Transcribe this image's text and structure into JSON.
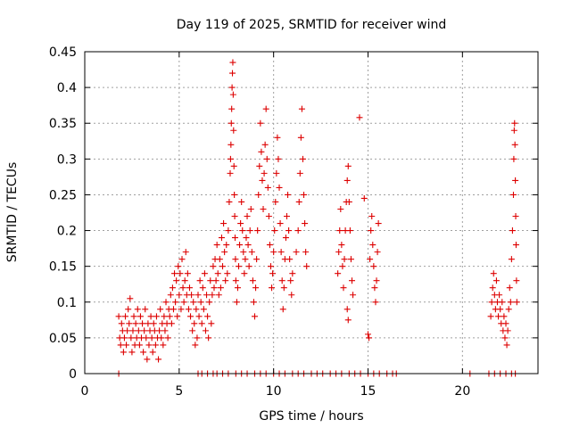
{
  "chart_data": {
    "type": "scatter",
    "title": "Day 119 of 2025, SRMTID for receiver wind",
    "xlabel": "GPS time / hours",
    "ylabel": "SRMTID / TECUs",
    "xlim": [
      0,
      24
    ],
    "ylim": [
      0,
      0.45
    ],
    "xticks": [
      0,
      5,
      10,
      15,
      20
    ],
    "yticks": [
      0,
      0.05,
      0.1,
      0.15,
      0.2,
      0.25,
      0.3,
      0.35,
      0.4,
      0.45
    ],
    "xtick_labels": [
      "0",
      "5",
      "10",
      "15",
      "20"
    ],
    "ytick_labels": [
      "0",
      "0.05",
      "0.1",
      "0.15",
      "0.2",
      "0.25",
      "0.3",
      "0.35",
      "0.4",
      "0.45"
    ],
    "grid": true,
    "marker": "+",
    "color": "#dd0000",
    "series": [
      {
        "name": "SRMTID",
        "points": [
          [
            1.8,
            0.08
          ],
          [
            1.85,
            0.05
          ],
          [
            1.9,
            0.04
          ],
          [
            1.95,
            0.07
          ],
          [
            2.0,
            0.06
          ],
          [
            2.05,
            0.03
          ],
          [
            2.1,
            0.05
          ],
          [
            2.15,
            0.08
          ],
          [
            2.2,
            0.04
          ],
          [
            2.25,
            0.06
          ],
          [
            2.3,
            0.09
          ],
          [
            2.35,
            0.07
          ],
          [
            2.4,
            0.105
          ],
          [
            2.45,
            0.05
          ],
          [
            2.5,
            0.03
          ],
          [
            2.55,
            0.06
          ],
          [
            2.6,
            0.08
          ],
          [
            2.65,
            0.04
          ],
          [
            2.7,
            0.07
          ],
          [
            2.75,
            0.05
          ],
          [
            2.8,
            0.09
          ],
          [
            2.85,
            0.06
          ],
          [
            2.9,
            0.04
          ],
          [
            2.95,
            0.08
          ],
          [
            3.0,
            0.05
          ],
          [
            3.05,
            0.07
          ],
          [
            3.1,
            0.03
          ],
          [
            3.15,
            0.06
          ],
          [
            3.2,
            0.09
          ],
          [
            3.25,
            0.05
          ],
          [
            3.3,
            0.02
          ],
          [
            3.35,
            0.07
          ],
          [
            3.4,
            0.04
          ],
          [
            3.45,
            0.06
          ],
          [
            3.5,
            0.08
          ],
          [
            3.55,
            0.05
          ],
          [
            3.6,
            0.03
          ],
          [
            3.65,
            0.07
          ],
          [
            3.7,
            0.06
          ],
          [
            3.75,
            0.04
          ],
          [
            3.8,
            0.08
          ],
          [
            3.85,
            0.05
          ],
          [
            3.9,
            0.02
          ],
          [
            3.95,
            0.06
          ],
          [
            4.0,
            0.09
          ],
          [
            4.05,
            0.05
          ],
          [
            4.1,
            0.07
          ],
          [
            4.15,
            0.04
          ],
          [
            4.2,
            0.08
          ],
          [
            4.25,
            0.06
          ],
          [
            4.3,
            0.1
          ],
          [
            4.35,
            0.07
          ],
          [
            4.4,
            0.05
          ],
          [
            4.45,
            0.09
          ],
          [
            4.5,
            0.08
          ],
          [
            4.55,
            0.11
          ],
          [
            4.6,
            0.07
          ],
          [
            4.65,
            0.12
          ],
          [
            4.7,
            0.09
          ],
          [
            4.75,
            0.14
          ],
          [
            4.8,
            0.1
          ],
          [
            4.85,
            0.13
          ],
          [
            4.9,
            0.08
          ],
          [
            4.95,
            0.15
          ],
          [
            5.0,
            0.11
          ],
          [
            5.05,
            0.14
          ],
          [
            5.1,
            0.09
          ],
          [
            5.15,
            0.16
          ],
          [
            5.2,
            0.12
          ],
          [
            5.25,
            0.1
          ],
          [
            5.3,
            0.13
          ],
          [
            5.35,
            0.17
          ],
          [
            5.4,
            0.11
          ],
          [
            5.45,
            0.14
          ],
          [
            5.5,
            0.09
          ],
          [
            5.55,
            0.12
          ],
          [
            5.6,
            0.08
          ],
          [
            5.65,
            0.11
          ],
          [
            5.7,
            0.06
          ],
          [
            5.75,
            0.1
          ],
          [
            5.8,
            0.07
          ],
          [
            5.85,
            0.04
          ],
          [
            5.9,
            0.09
          ],
          [
            5.95,
            0.05
          ],
          [
            6.0,
            0.11
          ],
          [
            6.05,
            0.08
          ],
          [
            6.1,
            0.13
          ],
          [
            6.15,
            0.1
          ],
          [
            6.2,
            0.07
          ],
          [
            6.25,
            0.12
          ],
          [
            6.3,
            0.09
          ],
          [
            6.35,
            0.14
          ],
          [
            6.4,
            0.06
          ],
          [
            6.45,
            0.11
          ],
          [
            6.5,
            0.08
          ],
          [
            6.55,
            0.05
          ],
          [
            6.6,
            0.1
          ],
          [
            6.65,
            0.13
          ],
          [
            6.7,
            0.07
          ],
          [
            6.75,
            0.11
          ],
          [
            6.8,
            0.15
          ],
          [
            6.85,
            0.12
          ],
          [
            6.9,
            0.16
          ],
          [
            6.95,
            0.13
          ],
          [
            7.0,
            0.18
          ],
          [
            7.05,
            0.14
          ],
          [
            7.1,
            0.11
          ],
          [
            7.15,
            0.16
          ],
          [
            7.2,
            0.12
          ],
          [
            7.25,
            0.19
          ],
          [
            7.3,
            0.15
          ],
          [
            7.35,
            0.21
          ],
          [
            7.4,
            0.17
          ],
          [
            7.45,
            0.13
          ],
          [
            7.5,
            0.18
          ],
          [
            7.55,
            0.14
          ],
          [
            7.6,
            0.2
          ],
          [
            7.65,
            0.24
          ],
          [
            7.7,
            0.28
          ],
          [
            7.72,
            0.3
          ],
          [
            7.74,
            0.32
          ],
          [
            7.76,
            0.35
          ],
          [
            7.78,
            0.37
          ],
          [
            7.8,
            0.4
          ],
          [
            7.82,
            0.42
          ],
          [
            7.84,
            0.435
          ],
          [
            7.86,
            0.39
          ],
          [
            7.88,
            0.34
          ],
          [
            7.9,
            0.29
          ],
          [
            7.92,
            0.25
          ],
          [
            7.94,
            0.22
          ],
          [
            7.96,
            0.19
          ],
          [
            7.98,
            0.16
          ],
          [
            8.0,
            0.13
          ],
          [
            8.05,
            0.1
          ],
          [
            8.1,
            0.12
          ],
          [
            8.15,
            0.15
          ],
          [
            8.2,
            0.18
          ],
          [
            8.25,
            0.21
          ],
          [
            8.3,
            0.24
          ],
          [
            8.35,
            0.2
          ],
          [
            8.4,
            0.17
          ],
          [
            8.45,
            0.14
          ],
          [
            8.5,
            0.16
          ],
          [
            8.55,
            0.19
          ],
          [
            8.6,
            0.22
          ],
          [
            8.65,
            0.18
          ],
          [
            8.7,
            0.15
          ],
          [
            8.75,
            0.2
          ],
          [
            8.8,
            0.23
          ],
          [
            8.85,
            0.17
          ],
          [
            8.9,
            0.13
          ],
          [
            8.95,
            0.1
          ],
          [
            9.0,
            0.08
          ],
          [
            9.05,
            0.12
          ],
          [
            9.1,
            0.16
          ],
          [
            9.15,
            0.2
          ],
          [
            9.2,
            0.25
          ],
          [
            9.25,
            0.29
          ],
          [
            9.3,
            0.35
          ],
          [
            9.35,
            0.31
          ],
          [
            9.4,
            0.27
          ],
          [
            9.45,
            0.23
          ],
          [
            9.5,
            0.28
          ],
          [
            9.55,
            0.32
          ],
          [
            9.6,
            0.37
          ],
          [
            9.65,
            0.3
          ],
          [
            9.7,
            0.26
          ],
          [
            9.75,
            0.22
          ],
          [
            9.8,
            0.18
          ],
          [
            9.85,
            0.15
          ],
          [
            9.9,
            0.12
          ],
          [
            9.95,
            0.14
          ],
          [
            10.0,
            0.17
          ],
          [
            10.05,
            0.2
          ],
          [
            10.1,
            0.24
          ],
          [
            10.15,
            0.28
          ],
          [
            10.2,
            0.33
          ],
          [
            10.25,
            0.3
          ],
          [
            10.3,
            0.26
          ],
          [
            10.35,
            0.21
          ],
          [
            10.4,
            0.17
          ],
          [
            10.45,
            0.13
          ],
          [
            10.5,
            0.09
          ],
          [
            10.55,
            0.12
          ],
          [
            10.6,
            0.16
          ],
          [
            10.65,
            0.19
          ],
          [
            10.7,
            0.22
          ],
          [
            10.75,
            0.25
          ],
          [
            10.8,
            0.2
          ],
          [
            10.85,
            0.16
          ],
          [
            10.9,
            0.13
          ],
          [
            10.95,
            0.11
          ],
          [
            11.0,
            0.14
          ],
          [
            11.2,
            0.17
          ],
          [
            11.3,
            0.2
          ],
          [
            11.35,
            0.24
          ],
          [
            11.4,
            0.28
          ],
          [
            11.45,
            0.33
          ],
          [
            11.5,
            0.37
          ],
          [
            11.55,
            0.3
          ],
          [
            11.6,
            0.25
          ],
          [
            11.65,
            0.21
          ],
          [
            11.7,
            0.17
          ],
          [
            11.75,
            0.15
          ],
          [
            13.4,
            0.14
          ],
          [
            13.45,
            0.17
          ],
          [
            13.5,
            0.2
          ],
          [
            13.55,
            0.23
          ],
          [
            13.6,
            0.18
          ],
          [
            13.65,
            0.15
          ],
          [
            13.7,
            0.12
          ],
          [
            13.75,
            0.16
          ],
          [
            13.8,
            0.2
          ],
          [
            13.85,
            0.24
          ],
          [
            13.9,
            0.27
          ],
          [
            13.95,
            0.29
          ],
          [
            14.0,
            0.24
          ],
          [
            14.05,
            0.2
          ],
          [
            14.1,
            0.16
          ],
          [
            14.15,
            0.13
          ],
          [
            14.2,
            0.11
          ],
          [
            13.9,
            0.09
          ],
          [
            13.95,
            0.075
          ],
          [
            14.55,
            0.358
          ],
          [
            14.8,
            0.245
          ],
          [
            15.1,
            0.16
          ],
          [
            15.15,
            0.2
          ],
          [
            15.2,
            0.22
          ],
          [
            15.25,
            0.18
          ],
          [
            15.3,
            0.15
          ],
          [
            15.35,
            0.12
          ],
          [
            15.4,
            0.1
          ],
          [
            15.45,
            0.13
          ],
          [
            15.5,
            0.17
          ],
          [
            15.55,
            0.21
          ],
          [
            15.0,
            0.055
          ],
          [
            15.05,
            0.05
          ],
          [
            21.5,
            0.08
          ],
          [
            21.55,
            0.1
          ],
          [
            21.6,
            0.12
          ],
          [
            21.65,
            0.14
          ],
          [
            21.7,
            0.11
          ],
          [
            21.75,
            0.09
          ],
          [
            21.8,
            0.13
          ],
          [
            21.85,
            0.1
          ],
          [
            21.9,
            0.08
          ],
          [
            21.95,
            0.11
          ],
          [
            22.0,
            0.09
          ],
          [
            22.05,
            0.07
          ],
          [
            22.1,
            0.1
          ],
          [
            22.15,
            0.06
          ],
          [
            22.2,
            0.08
          ],
          [
            22.25,
            0.05
          ],
          [
            22.3,
            0.07
          ],
          [
            22.35,
            0.04
          ],
          [
            22.4,
            0.06
          ],
          [
            22.45,
            0.09
          ],
          [
            22.5,
            0.12
          ],
          [
            22.55,
            0.1
          ],
          [
            22.6,
            0.16
          ],
          [
            22.65,
            0.2
          ],
          [
            22.7,
            0.25
          ],
          [
            22.72,
            0.3
          ],
          [
            22.74,
            0.34
          ],
          [
            22.76,
            0.35
          ],
          [
            22.78,
            0.32
          ],
          [
            22.8,
            0.27
          ],
          [
            22.82,
            0.22
          ],
          [
            22.84,
            0.18
          ],
          [
            22.86,
            0.13
          ],
          [
            22.88,
            0.1
          ],
          [
            1.8,
            0
          ],
          [
            6.0,
            0
          ],
          [
            6.2,
            0
          ],
          [
            6.5,
            0
          ],
          [
            6.8,
            0
          ],
          [
            7.0,
            0
          ],
          [
            7.3,
            0
          ],
          [
            7.6,
            0
          ],
          [
            8.0,
            0
          ],
          [
            8.3,
            0
          ],
          [
            8.6,
            0
          ],
          [
            9.0,
            0
          ],
          [
            9.3,
            0
          ],
          [
            9.6,
            0
          ],
          [
            10.0,
            0
          ],
          [
            10.3,
            0
          ],
          [
            10.6,
            0
          ],
          [
            11.0,
            0
          ],
          [
            11.3,
            0
          ],
          [
            11.6,
            0
          ],
          [
            12.0,
            0
          ],
          [
            12.3,
            0
          ],
          [
            12.6,
            0
          ],
          [
            13.0,
            0
          ],
          [
            13.3,
            0
          ],
          [
            13.6,
            0
          ],
          [
            14.0,
            0
          ],
          [
            14.3,
            0
          ],
          [
            14.6,
            0
          ],
          [
            15.0,
            0
          ],
          [
            15.3,
            0
          ],
          [
            15.6,
            0
          ],
          [
            16.0,
            0
          ],
          [
            16.3,
            0
          ],
          [
            16.5,
            0
          ],
          [
            20.4,
            0
          ],
          [
            21.4,
            0
          ],
          [
            21.7,
            0
          ],
          [
            22.0,
            0
          ],
          [
            22.3,
            0
          ],
          [
            22.6,
            0
          ],
          [
            22.8,
            0
          ]
        ]
      }
    ]
  }
}
